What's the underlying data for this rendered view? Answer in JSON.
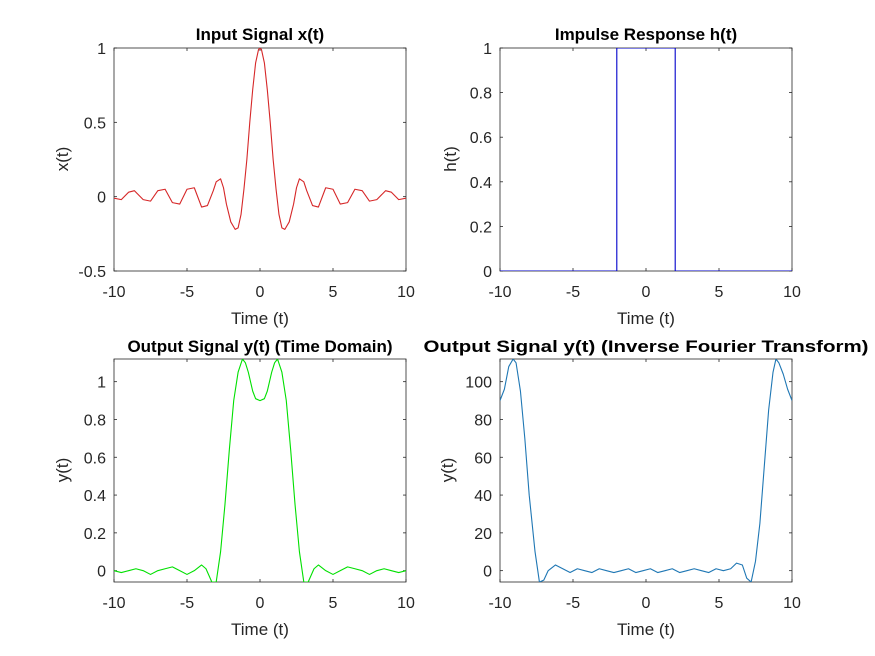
{
  "chart_data": [
    {
      "type": "line",
      "title": "Input Signal x(t)",
      "xlabel": "Time (t)",
      "ylabel": "x(t)",
      "xlim": [
        -10,
        10
      ],
      "ylim": [
        -0.5,
        1
      ],
      "xticks": [
        -10,
        -5,
        0,
        5,
        10
      ],
      "yticks": [
        -0.5,
        0,
        0.5,
        1
      ],
      "xtick_labels": [
        "-10",
        "-5",
        "0",
        "5",
        "10"
      ],
      "ytick_labels": [
        "-0.5",
        "0",
        "0.5",
        "1"
      ],
      "color": "#d62728",
      "series": [
        {
          "x": [
            -10,
            -9.5,
            -9,
            -8.6,
            -8,
            -7.5,
            -7,
            -6.5,
            -6,
            -5.5,
            -5,
            -4.5,
            -4,
            -3.6,
            -3.2,
            -3,
            -2.7,
            -2.5,
            -2.3,
            -2,
            -1.7,
            -1.5,
            -1.3,
            -1.1,
            -0.9,
            -0.7,
            -0.5,
            -0.3,
            -0.1,
            0,
            0.1,
            0.3,
            0.5,
            0.7,
            0.9,
            1.1,
            1.3,
            1.5,
            1.7,
            2,
            2.3,
            2.5,
            2.7,
            3,
            3.2,
            3.6,
            4,
            4.5,
            5,
            5.5,
            6,
            6.5,
            7,
            7.5,
            8,
            8.6,
            9,
            9.5,
            10
          ],
          "y": [
            -0.01,
            -0.02,
            0.03,
            0.04,
            -0.02,
            -0.03,
            0.04,
            0.05,
            -0.04,
            -0.05,
            0.05,
            0.06,
            -0.07,
            -0.06,
            0.04,
            0.1,
            0.12,
            0.06,
            -0.05,
            -0.17,
            -0.22,
            -0.21,
            -0.12,
            0.05,
            0.25,
            0.5,
            0.72,
            0.9,
            0.99,
            1.0,
            0.99,
            0.9,
            0.72,
            0.5,
            0.25,
            0.05,
            -0.12,
            -0.21,
            -0.22,
            -0.17,
            -0.05,
            0.06,
            0.12,
            0.1,
            0.04,
            -0.06,
            -0.07,
            0.06,
            0.05,
            -0.05,
            -0.04,
            0.05,
            0.04,
            -0.03,
            -0.02,
            0.04,
            0.03,
            -0.02,
            -0.01
          ]
        }
      ]
    },
    {
      "type": "line",
      "title": "Impulse Response h(t)",
      "xlabel": "Time (t)",
      "ylabel": "h(t)",
      "xlim": [
        -10,
        10
      ],
      "ylim": [
        0,
        1
      ],
      "xticks": [
        -10,
        -5,
        0,
        5,
        10
      ],
      "yticks": [
        0,
        0.2,
        0.4,
        0.6,
        0.8,
        1
      ],
      "xtick_labels": [
        "-10",
        "-5",
        "0",
        "5",
        "10"
      ],
      "ytick_labels": [
        "0",
        "0.2",
        "0.4",
        "0.6",
        "0.8",
        "1"
      ],
      "color": "#0000cc",
      "series": [
        {
          "x": [
            -10,
            -2,
            -2,
            2,
            2,
            10
          ],
          "y": [
            0,
            0,
            1,
            1,
            0,
            0
          ]
        }
      ]
    },
    {
      "type": "line",
      "title": "Output Signal y(t) (Time Domain)",
      "xlabel": "Time (t)",
      "ylabel": "y(t)",
      "xlim": [
        -10,
        10
      ],
      "ylim": [
        -0.06,
        1.12
      ],
      "xticks": [
        -10,
        -5,
        0,
        5,
        10
      ],
      "yticks": [
        0,
        0.2,
        0.4,
        0.6,
        0.8,
        1
      ],
      "xtick_labels": [
        "-10",
        "-5",
        "0",
        "5",
        "10"
      ],
      "ytick_labels": [
        "0",
        "0.2",
        "0.4",
        "0.6",
        "0.8",
        "1"
      ],
      "color": "#00e000",
      "series": [
        {
          "x": [
            -10,
            -9.5,
            -9,
            -8.5,
            -8,
            -7.5,
            -7,
            -6.5,
            -6,
            -5.5,
            -5,
            -4.5,
            -4,
            -3.7,
            -3.3,
            -3,
            -2.7,
            -2.4,
            -2.1,
            -1.8,
            -1.5,
            -1.2,
            -1,
            -0.8,
            -0.5,
            -0.3,
            0,
            0.3,
            0.5,
            0.8,
            1,
            1.2,
            1.5,
            1.8,
            2.1,
            2.4,
            2.7,
            3,
            3.3,
            3.7,
            4,
            4.5,
            5,
            5.5,
            6,
            6.5,
            7,
            7.5,
            8,
            8.5,
            9,
            9.5,
            10
          ],
          "y": [
            0,
            -0.01,
            0,
            0.01,
            0,
            -0.02,
            0,
            0.01,
            0.02,
            0,
            -0.02,
            0,
            0.03,
            0.01,
            -0.06,
            -0.06,
            0.1,
            0.35,
            0.64,
            0.9,
            1.05,
            1.12,
            1.1,
            1.05,
            0.95,
            0.91,
            0.9,
            0.91,
            0.95,
            1.05,
            1.1,
            1.12,
            1.05,
            0.9,
            0.64,
            0.35,
            0.1,
            -0.06,
            -0.06,
            0.01,
            0.03,
            0,
            -0.02,
            0,
            0.02,
            0.01,
            0,
            -0.02,
            0,
            0.01,
            0,
            -0.01,
            0
          ]
        }
      ]
    },
    {
      "type": "line",
      "title": "Output Signal y(t) (Inverse Fourier Transform)",
      "xlabel": "Time (t)",
      "ylabel": "y(t)",
      "xlim": [
        -10,
        10
      ],
      "ylim": [
        -6,
        112
      ],
      "xticks": [
        -10,
        -5,
        0,
        5,
        10
      ],
      "yticks": [
        0,
        20,
        40,
        60,
        80,
        100
      ],
      "xtick_labels": [
        "-10",
        "-5",
        "0",
        "5",
        "10"
      ],
      "ytick_labels": [
        "0",
        "20",
        "40",
        "60",
        "80",
        "100"
      ],
      "color": "#1f77b4",
      "series": [
        {
          "x": [
            -10,
            -9.7,
            -9.4,
            -9.1,
            -8.9,
            -8.6,
            -8.3,
            -8,
            -7.6,
            -7.3,
            -7,
            -6.7,
            -6.2,
            -5.7,
            -5.2,
            -4.7,
            -4.2,
            -3.7,
            -3.2,
            -2.7,
            -2.2,
            -1.7,
            -1.2,
            -0.7,
            -0.2,
            0.3,
            0.8,
            1.3,
            1.8,
            2.3,
            2.8,
            3.3,
            3.8,
            4.3,
            4.8,
            5.3,
            5.8,
            6.2,
            6.6,
            6.9,
            7.2,
            7.5,
            7.8,
            8.1,
            8.4,
            8.7,
            8.9,
            9.1,
            9.4,
            9.7,
            10
          ],
          "y": [
            90,
            96,
            108,
            112,
            110,
            95,
            70,
            40,
            10,
            -6,
            -5,
            0,
            3,
            1,
            -1,
            1,
            0,
            -1,
            1,
            0,
            -1,
            0,
            1,
            -1,
            0,
            1,
            -1,
            0,
            1,
            -1,
            0,
            1,
            0,
            -1,
            1,
            0,
            1,
            4,
            3,
            -4,
            -6,
            5,
            25,
            55,
            85,
            105,
            112,
            110,
            104,
            96,
            90
          ]
        }
      ]
    }
  ]
}
